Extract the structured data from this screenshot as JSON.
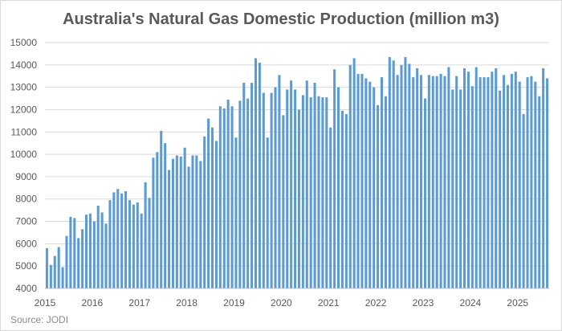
{
  "chart_data": {
    "type": "bar",
    "title": "Australia's Natural Gas Domestic Production (million m3)",
    "source": "Source: JODI",
    "xlabel": "",
    "ylabel": "",
    "ylim": [
      4000,
      15000
    ],
    "y_ticks": [
      4000,
      5000,
      6000,
      7000,
      8000,
      9000,
      10000,
      11000,
      12000,
      13000,
      14000,
      15000
    ],
    "x_ticks": [
      "2015",
      "2016",
      "2017",
      "2018",
      "2019",
      "2020",
      "2021",
      "2022",
      "2023",
      "2024",
      "2025"
    ],
    "x_start_year": 2015,
    "grid": "horizontal",
    "bar_color": "#5b9bd5",
    "grid_color": "#d9d9d9",
    "values": [
      5800,
      5050,
      5450,
      5850,
      4950,
      6350,
      7200,
      7150,
      6250,
      6650,
      7300,
      7350,
      7000,
      7700,
      7400,
      6900,
      7950,
      8300,
      8450,
      8250,
      8350,
      7950,
      7750,
      7850,
      7350,
      8750,
      8050,
      9850,
      10100,
      11050,
      10500,
      9300,
      9800,
      9950,
      9900,
      10300,
      9450,
      9950,
      9950,
      9700,
      10800,
      11600,
      11200,
      10600,
      12150,
      12050,
      12450,
      12150,
      10750,
      12400,
      13200,
      12500,
      13200,
      14300,
      14100,
      12750,
      10750,
      12750,
      13000,
      13550,
      11750,
      12900,
      13300,
      12900,
      12000,
      12650,
      13300,
      12550,
      13200,
      12600,
      12550,
      12550,
      11200,
      13800,
      13000,
      11950,
      11800,
      14000,
      14300,
      13600,
      13600,
      13400,
      13250,
      13000,
      12200,
      13450,
      12600,
      14350,
      14200,
      13550,
      14000,
      14350,
      14050,
      13450,
      13850,
      13550,
      12500,
      13550,
      13500,
      13500,
      13600,
      13500,
      13900,
      12900,
      13500,
      12900,
      13850,
      13700,
      13050,
      13900,
      13450,
      13450,
      13450,
      13700,
      13850,
      12850,
      13550,
      13100,
      13600,
      13700,
      13250,
      11800,
      13450,
      13500,
      13250,
      12600,
      13850,
      13400
    ]
  }
}
